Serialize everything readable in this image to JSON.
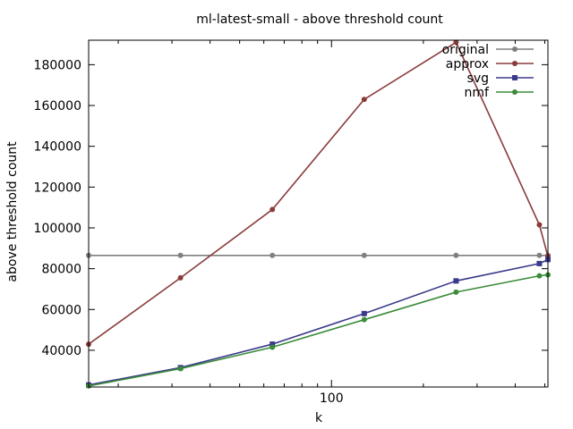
{
  "chart_data": {
    "type": "line",
    "title": "ml-latest-small - above threshold count",
    "xlabel": "k",
    "ylabel": "above threshold count",
    "x_scale": "log",
    "xlim": [
      16,
      512
    ],
    "ylim": [
      22000,
      192000
    ],
    "x_tick_labels": [
      {
        "value": 100,
        "label": "100"
      }
    ],
    "x_minor_ticks": [
      20,
      30,
      40,
      50,
      60,
      70,
      80,
      90,
      200,
      300,
      400,
      500
    ],
    "y_ticks": [
      40000,
      60000,
      80000,
      100000,
      120000,
      140000,
      160000,
      180000
    ],
    "legend_position": "top-right",
    "grid": false,
    "x": [
      16,
      32,
      64,
      128,
      256,
      480,
      512
    ],
    "series": [
      {
        "name": "original",
        "color": "#808080",
        "marker": "circle",
        "values": [
          86500,
          86500,
          86500,
          86500,
          86500,
          86500,
          86500
        ]
      },
      {
        "name": "approx",
        "color": "#8b3a3a",
        "marker": "circle",
        "values": [
          43000,
          75500,
          109000,
          163000,
          191000,
          101500,
          86000
        ]
      },
      {
        "name": "svg",
        "color": "#3a3a8b",
        "marker": "square",
        "values": [
          23000,
          31500,
          43000,
          58000,
          74000,
          82500,
          84500
        ]
      },
      {
        "name": "nmf",
        "color": "#3a8b3a",
        "marker": "circle",
        "values": [
          22500,
          31000,
          41500,
          55000,
          68500,
          76500,
          77000
        ]
      }
    ]
  }
}
